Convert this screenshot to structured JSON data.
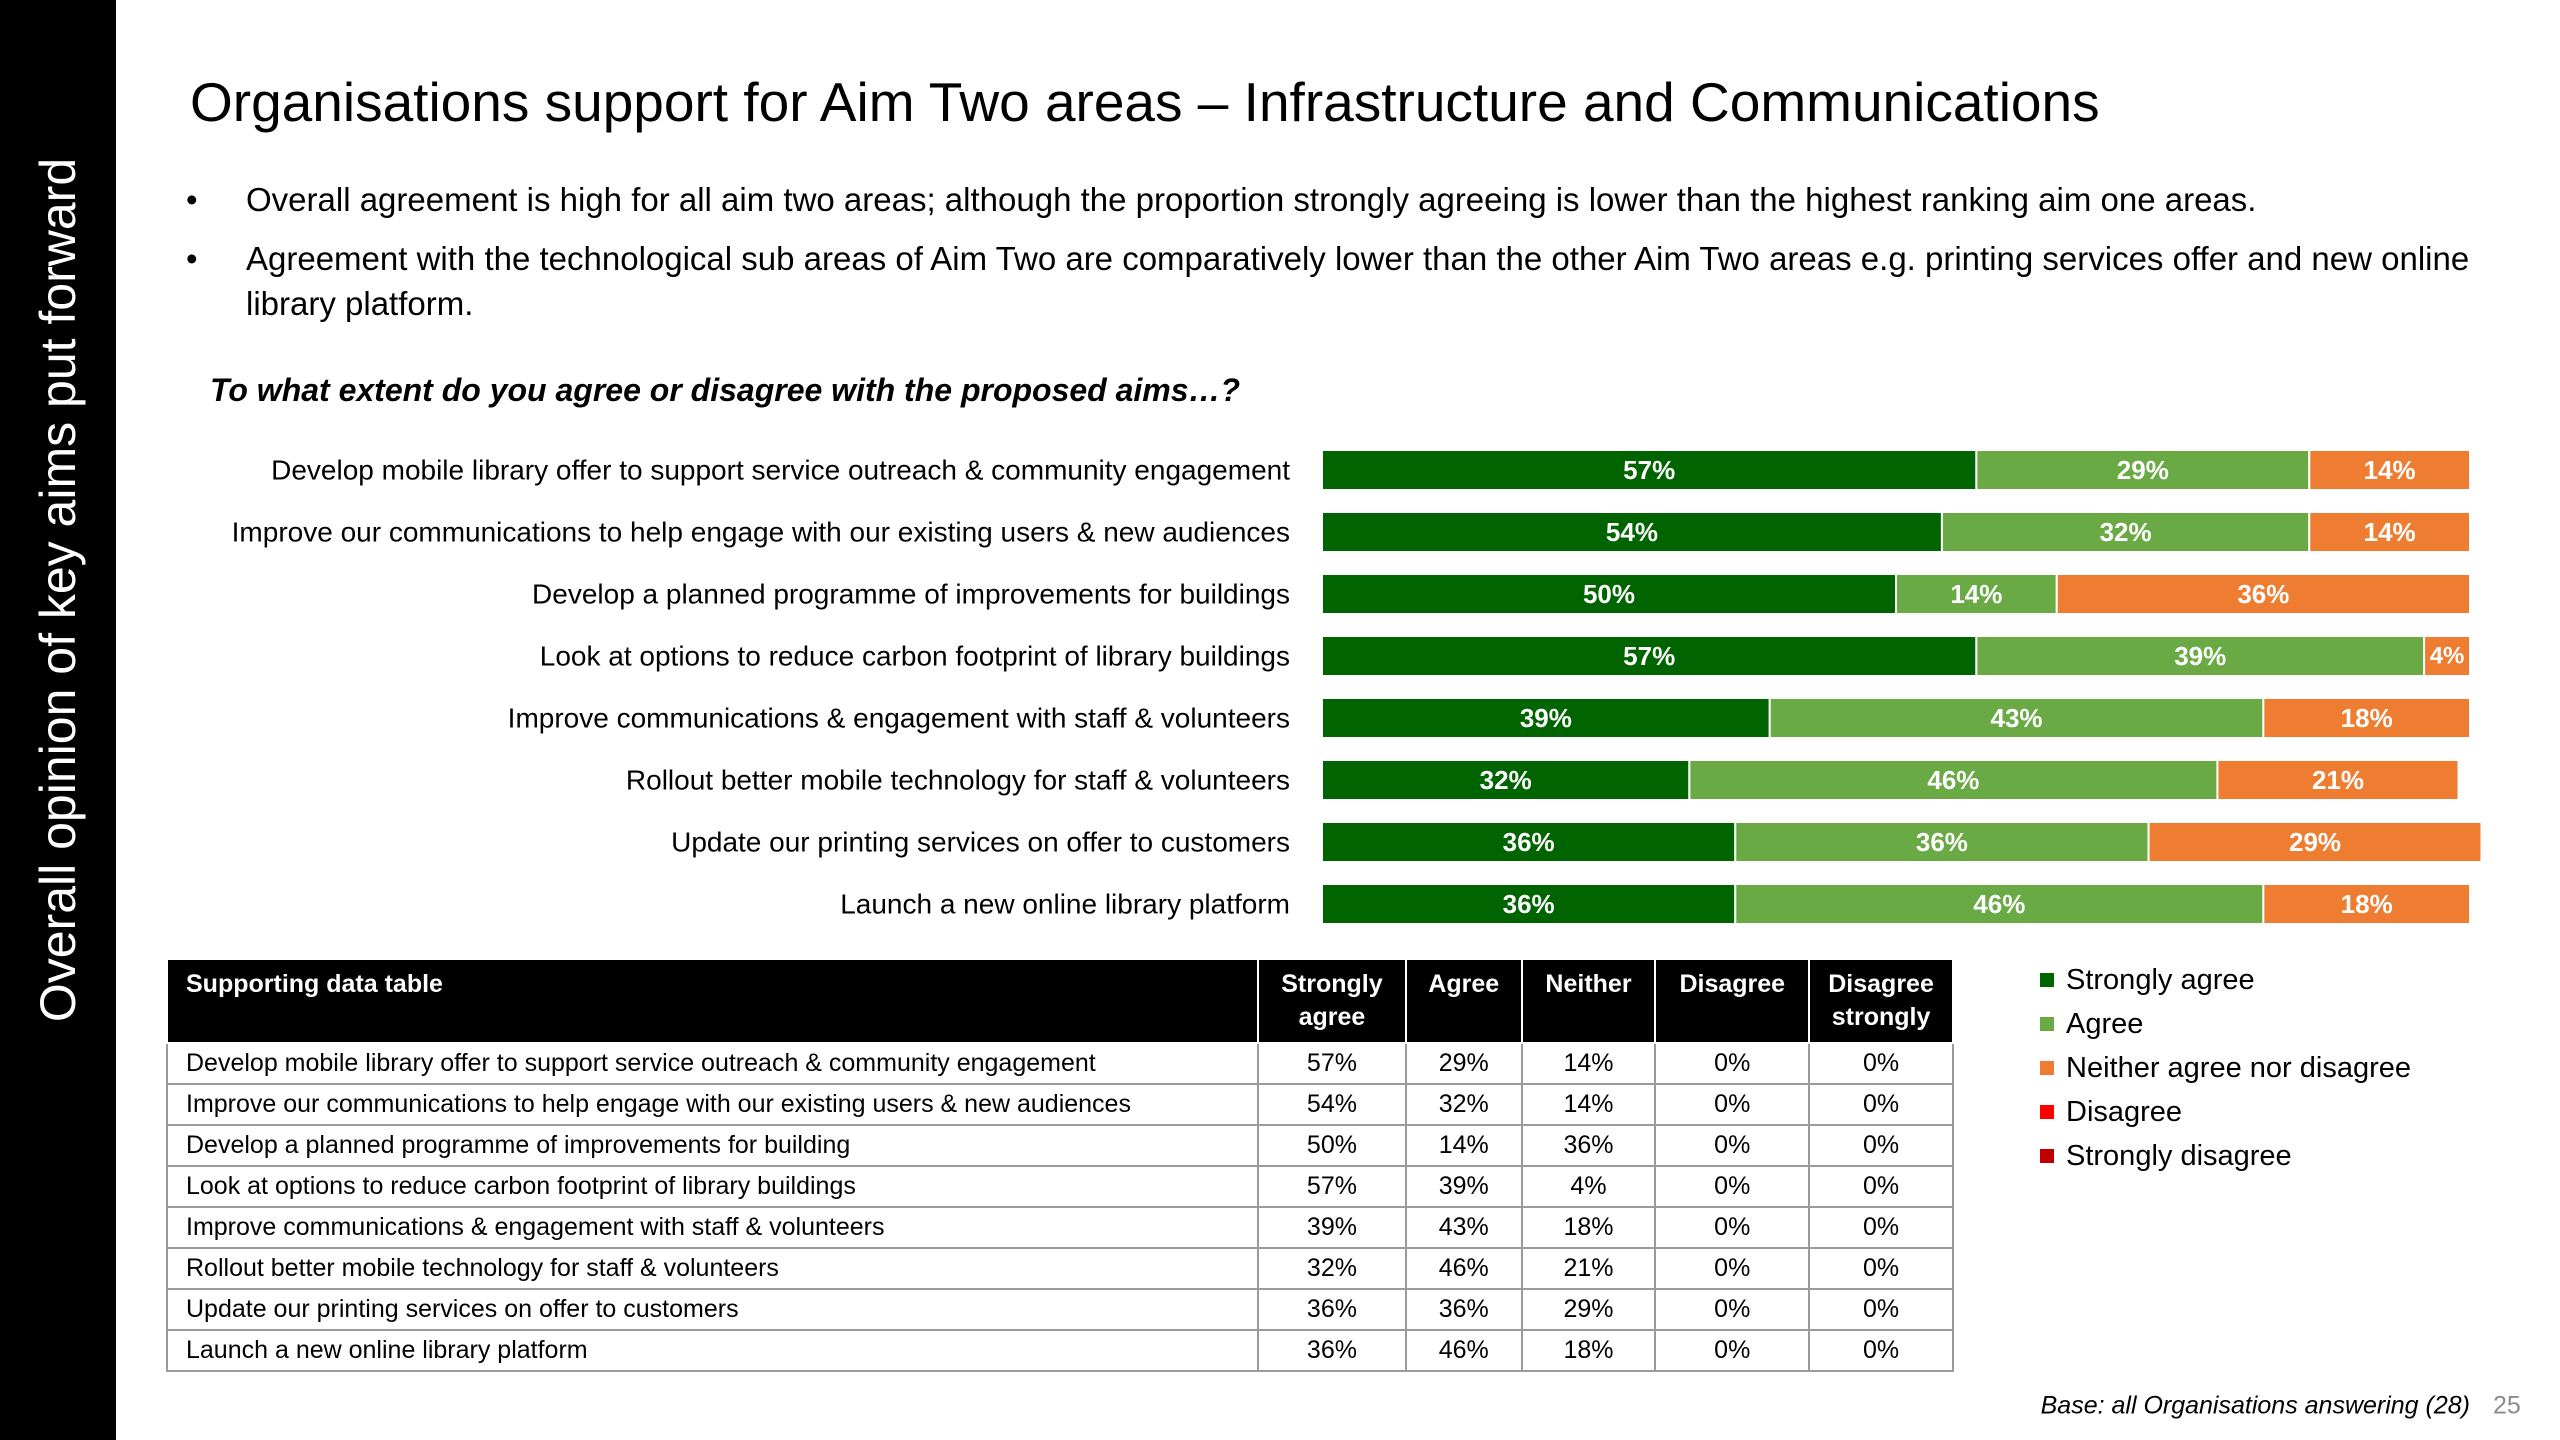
{
  "side_banner": "Overall opinion of key aims put forward",
  "title": "Organisations support for Aim Two areas – Infrastructure and Communications",
  "bullets": [
    "Overall agreement is high for all aim two areas; although the proportion strongly agreeing is lower than the highest ranking aim one areas.",
    "Agreement with the technological sub areas of Aim Two are comparatively lower than the other Aim Two areas e.g. printing services offer and new online library platform."
  ],
  "question": "To what extent do you agree or disagree with the proposed aims…?",
  "colors": {
    "strongly_agree": "#006400",
    "agree": "#6aaa45",
    "neither": "#ee7d31",
    "disagree": "#ff0000",
    "strongly_disagree": "#c00000"
  },
  "chart_data": {
    "type": "bar",
    "orientation": "horizontal",
    "stacked": true,
    "title": "To what extent do you agree or disagree with the proposed aims…?",
    "categories": [
      "Develop mobile library offer to support service outreach & community engagement",
      "Improve our communications to help engage with our existing users & new audiences",
      "Develop a planned programme of improvements for buildings",
      "Look at options to reduce carbon footprint of library buildings",
      "Improve communications & engagement with staff & volunteers",
      "Rollout better mobile technology for staff & volunteers",
      "Update our printing services on offer to customers",
      "Launch a new online library platform"
    ],
    "series": [
      {
        "name": "Strongly agree",
        "values": [
          57,
          54,
          50,
          57,
          39,
          32,
          36,
          36
        ]
      },
      {
        "name": "Agree",
        "values": [
          29,
          32,
          14,
          39,
          43,
          46,
          36,
          46
        ]
      },
      {
        "name": "Neither agree nor disagree",
        "values": [
          14,
          14,
          36,
          4,
          18,
          21,
          29,
          18
        ]
      },
      {
        "name": "Disagree",
        "values": [
          0,
          0,
          0,
          0,
          0,
          0,
          0,
          0
        ]
      },
      {
        "name": "Strongly disagree",
        "values": [
          0,
          0,
          0,
          0,
          0,
          0,
          0,
          0
        ]
      }
    ],
    "unit": "%",
    "legend_position": "bottom-right"
  },
  "table": {
    "header": [
      "Supporting data table",
      "Strongly agree",
      "Agree",
      "Neither",
      "Disagree",
      "Disagree strongly"
    ],
    "rows": [
      {
        "label": "Develop mobile library offer to support service outreach & community engagement",
        "values": [
          "57%",
          "29%",
          "14%",
          "0%",
          "0%"
        ]
      },
      {
        "label": "Improve our communications to help engage with our existing users & new audiences",
        "values": [
          "54%",
          "32%",
          "14%",
          "0%",
          "0%"
        ]
      },
      {
        "label": "Develop a planned programme of improvements for building",
        "values": [
          "50%",
          "14%",
          "36%",
          "0%",
          "0%"
        ]
      },
      {
        "label": "Look at options to reduce carbon footprint of library buildings",
        "values": [
          "57%",
          "39%",
          "4%",
          "0%",
          "0%"
        ]
      },
      {
        "label": "Improve communications & engagement with staff & volunteers",
        "values": [
          "39%",
          "43%",
          "18%",
          "0%",
          "0%"
        ]
      },
      {
        "label": "Rollout better mobile technology for staff & volunteers",
        "values": [
          "32%",
          "46%",
          "21%",
          "0%",
          "0%"
        ]
      },
      {
        "label": "Update our printing services on offer to customers",
        "values": [
          "36%",
          "36%",
          "29%",
          "0%",
          "0%"
        ]
      },
      {
        "label": "Launch a new online library platform",
        "values": [
          "36%",
          "46%",
          "18%",
          "0%",
          "0%"
        ]
      }
    ]
  },
  "legend": [
    {
      "label": "Strongly agree",
      "color": "#006400"
    },
    {
      "label": "Agree",
      "color": "#6aaa45"
    },
    {
      "label": "Neither agree nor disagree",
      "color": "#ee7d31"
    },
    {
      "label": "Disagree",
      "color": "#ff0000"
    },
    {
      "label": "Strongly disagree",
      "color": "#c00000"
    }
  ],
  "base_note": "Base: all Organisations answering (28)",
  "page_number": "25"
}
